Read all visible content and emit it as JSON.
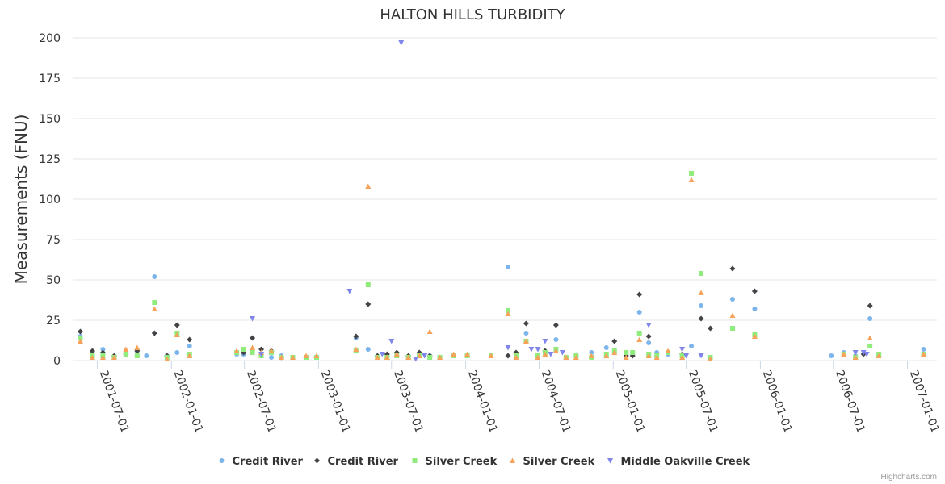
{
  "colors": {
    "credit_river_1": "#7cb5ec",
    "credit_river_2": "#434348",
    "silver_creek_1": "#90ed7d",
    "silver_creek_2": "#f7a35c",
    "middle_oakville": "#8085e9",
    "grid": "#e6e6e6",
    "axis": "#ccd6eb"
  },
  "credits": "Highcharts.com",
  "chart_data": {
    "type": "scatter",
    "title": "HALTON HILLS TURBIDITY",
    "ylabel": "Measurements (FNU)",
    "xlabel": "",
    "ylim": [
      0,
      200
    ],
    "y_ticks": [
      0,
      25,
      50,
      75,
      100,
      125,
      150,
      175,
      200
    ],
    "xlim": [
      "2001-05-01",
      "2007-03-15"
    ],
    "x_ticks": [
      "2001-07-01",
      "2002-01-01",
      "2002-07-01",
      "2003-01-01",
      "2003-07-01",
      "2004-01-01",
      "2004-07-01",
      "2005-01-01",
      "2005-07-01",
      "2006-01-01",
      "2006-07-01",
      "2007-01-01"
    ],
    "grid": "horizontal",
    "legend_position": "bottom-center",
    "series": [
      {
        "name": "Credit River",
        "marker": "circle",
        "color_key": "credit_river_1",
        "points": [
          [
            "2001-05-20",
            15
          ],
          [
            "2001-06-19",
            5
          ],
          [
            "2001-07-15",
            7
          ],
          [
            "2001-08-12",
            2
          ],
          [
            "2001-09-10",
            5
          ],
          [
            "2001-10-08",
            6
          ],
          [
            "2001-10-31",
            3
          ],
          [
            "2001-11-20",
            52
          ],
          [
            "2001-12-21",
            3
          ],
          [
            "2002-01-15",
            5
          ],
          [
            "2002-02-15",
            9
          ],
          [
            "2002-06-12",
            4
          ],
          [
            "2002-06-29",
            4
          ],
          [
            "2002-07-21",
            5
          ],
          [
            "2002-08-12",
            3
          ],
          [
            "2002-09-06",
            2
          ],
          [
            "2002-10-01",
            3
          ],
          [
            "2002-10-29",
            2
          ],
          [
            "2002-12-01",
            2
          ],
          [
            "2002-12-27",
            2
          ],
          [
            "2003-04-04",
            14
          ],
          [
            "2003-05-04",
            7
          ],
          [
            "2003-05-27",
            2
          ],
          [
            "2003-06-20",
            3
          ],
          [
            "2003-07-14",
            3
          ],
          [
            "2003-08-12",
            2
          ],
          [
            "2003-09-08",
            3
          ],
          [
            "2003-10-04",
            3
          ],
          [
            "2003-10-29",
            2
          ],
          [
            "2003-12-02",
            3
          ],
          [
            "2004-01-05",
            3
          ],
          [
            "2004-03-04",
            3
          ],
          [
            "2004-04-15",
            58
          ],
          [
            "2004-05-05",
            3
          ],
          [
            "2004-05-30",
            17
          ],
          [
            "2004-06-28",
            3
          ],
          [
            "2004-07-16",
            5
          ],
          [
            "2004-08-12",
            13
          ],
          [
            "2004-09-06",
            2
          ],
          [
            "2004-10-01",
            3
          ],
          [
            "2004-11-08",
            5
          ],
          [
            "2004-12-15",
            8
          ],
          [
            "2005-01-04",
            5
          ],
          [
            "2005-02-02",
            4
          ],
          [
            "2005-03-07",
            30
          ],
          [
            "2005-03-30",
            11
          ],
          [
            "2005-04-19",
            5
          ],
          [
            "2005-05-17",
            4
          ],
          [
            "2005-06-21",
            2
          ],
          [
            "2005-07-14",
            9
          ],
          [
            "2005-08-07",
            34
          ],
          [
            "2005-08-30",
            2
          ],
          [
            "2005-10-24",
            38
          ],
          [
            "2005-12-18",
            32
          ],
          [
            "2006-06-26",
            3
          ],
          [
            "2006-07-27",
            5
          ],
          [
            "2006-08-25",
            3
          ],
          [
            "2006-09-30",
            26
          ],
          [
            "2006-10-22",
            3
          ],
          [
            "2007-02-10",
            7
          ]
        ]
      },
      {
        "name": "Credit River",
        "marker": "diamond",
        "color_key": "credit_river_2",
        "points": [
          [
            "2001-05-20",
            18
          ],
          [
            "2001-06-19",
            6
          ],
          [
            "2001-07-15",
            5
          ],
          [
            "2001-08-12",
            3
          ],
          [
            "2001-09-10",
            4
          ],
          [
            "2001-10-08",
            6
          ],
          [
            "2001-11-20",
            17
          ],
          [
            "2001-12-21",
            3
          ],
          [
            "2002-01-15",
            22
          ],
          [
            "2002-02-15",
            13
          ],
          [
            "2002-06-29",
            5
          ],
          [
            "2002-07-21",
            14
          ],
          [
            "2002-08-12",
            7
          ],
          [
            "2002-09-06",
            6
          ],
          [
            "2002-10-01",
            2
          ],
          [
            "2003-04-04",
            15
          ],
          [
            "2003-05-04",
            35
          ],
          [
            "2003-05-27",
            3
          ],
          [
            "2003-06-20",
            4
          ],
          [
            "2003-07-14",
            5
          ],
          [
            "2003-08-12",
            3
          ],
          [
            "2003-09-08",
            5
          ],
          [
            "2003-10-04",
            3
          ],
          [
            "2004-04-15",
            3
          ],
          [
            "2004-05-05",
            5
          ],
          [
            "2004-05-30",
            23
          ],
          [
            "2004-07-16",
            6
          ],
          [
            "2004-08-12",
            22
          ],
          [
            "2005-01-04",
            12
          ],
          [
            "2005-02-02",
            3
          ],
          [
            "2005-02-18",
            3
          ],
          [
            "2005-03-07",
            41
          ],
          [
            "2005-03-30",
            15
          ],
          [
            "2005-06-21",
            4
          ],
          [
            "2005-08-07",
            26
          ],
          [
            "2005-08-30",
            20
          ],
          [
            "2005-10-24",
            57
          ],
          [
            "2005-12-18",
            43
          ],
          [
            "2006-09-14",
            4
          ],
          [
            "2006-09-30",
            34
          ]
        ]
      },
      {
        "name": "Silver Creek",
        "marker": "square",
        "color_key": "silver_creek_1",
        "points": [
          [
            "2001-05-20",
            14
          ],
          [
            "2001-06-19",
            3
          ],
          [
            "2001-07-15",
            3
          ],
          [
            "2001-08-12",
            2
          ],
          [
            "2001-09-10",
            4
          ],
          [
            "2001-10-08",
            3
          ],
          [
            "2001-11-20",
            36
          ],
          [
            "2001-12-21",
            2
          ],
          [
            "2002-01-15",
            17
          ],
          [
            "2002-02-15",
            4
          ],
          [
            "2002-06-12",
            5
          ],
          [
            "2002-06-29",
            7
          ],
          [
            "2002-07-21",
            5
          ],
          [
            "2002-08-12",
            3
          ],
          [
            "2002-09-06",
            5
          ],
          [
            "2002-10-01",
            2
          ],
          [
            "2002-10-29",
            2
          ],
          [
            "2002-12-01",
            2
          ],
          [
            "2002-12-27",
            2
          ],
          [
            "2003-04-04",
            6
          ],
          [
            "2003-05-04",
            47
          ],
          [
            "2003-05-27",
            2
          ],
          [
            "2003-06-20",
            2
          ],
          [
            "2003-07-14",
            3
          ],
          [
            "2003-08-12",
            2
          ],
          [
            "2003-09-08",
            3
          ],
          [
            "2003-10-04",
            2
          ],
          [
            "2003-10-29",
            2
          ],
          [
            "2003-12-02",
            3
          ],
          [
            "2004-01-05",
            3
          ],
          [
            "2004-03-04",
            3
          ],
          [
            "2004-04-15",
            31
          ],
          [
            "2004-05-05",
            3
          ],
          [
            "2004-05-30",
            12
          ],
          [
            "2004-06-28",
            3
          ],
          [
            "2004-07-16",
            5
          ],
          [
            "2004-08-12",
            7
          ],
          [
            "2004-09-06",
            2
          ],
          [
            "2004-10-01",
            3
          ],
          [
            "2004-11-08",
            2
          ],
          [
            "2004-12-15",
            4
          ],
          [
            "2005-01-04",
            6
          ],
          [
            "2005-02-02",
            5
          ],
          [
            "2005-02-18",
            5
          ],
          [
            "2005-03-07",
            17
          ],
          [
            "2005-03-30",
            4
          ],
          [
            "2005-04-19",
            3
          ],
          [
            "2005-05-17",
            5
          ],
          [
            "2005-06-21",
            3
          ],
          [
            "2005-07-14",
            116
          ],
          [
            "2005-08-07",
            54
          ],
          [
            "2005-08-30",
            2
          ],
          [
            "2005-10-24",
            20
          ],
          [
            "2005-12-18",
            16
          ],
          [
            "2006-07-27",
            4
          ],
          [
            "2006-08-25",
            2
          ],
          [
            "2006-09-30",
            9
          ],
          [
            "2006-10-22",
            4
          ],
          [
            "2007-02-10",
            4
          ]
        ]
      },
      {
        "name": "Silver Creek",
        "marker": "triangle",
        "color_key": "silver_creek_2",
        "points": [
          [
            "2001-05-20",
            12
          ],
          [
            "2001-06-19",
            2
          ],
          [
            "2001-07-15",
            2
          ],
          [
            "2001-08-12",
            2
          ],
          [
            "2001-09-10",
            7
          ],
          [
            "2001-10-08",
            8
          ],
          [
            "2001-11-20",
            32
          ],
          [
            "2001-12-21",
            1
          ],
          [
            "2002-01-15",
            16
          ],
          [
            "2002-02-15",
            3
          ],
          [
            "2002-06-12",
            6
          ],
          [
            "2002-07-21",
            8
          ],
          [
            "2002-08-12",
            5
          ],
          [
            "2002-09-06",
            6
          ],
          [
            "2002-10-01",
            2
          ],
          [
            "2002-10-29",
            2
          ],
          [
            "2002-12-01",
            3
          ],
          [
            "2002-12-27",
            3
          ],
          [
            "2003-04-04",
            7
          ],
          [
            "2003-05-04",
            108
          ],
          [
            "2003-05-27",
            2
          ],
          [
            "2003-06-20",
            2
          ],
          [
            "2003-07-14",
            4
          ],
          [
            "2003-08-12",
            2
          ],
          [
            "2003-09-08",
            3
          ],
          [
            "2003-10-04",
            18
          ],
          [
            "2003-10-29",
            2
          ],
          [
            "2003-12-02",
            4
          ],
          [
            "2004-01-05",
            4
          ],
          [
            "2004-03-04",
            3
          ],
          [
            "2004-04-15",
            29
          ],
          [
            "2004-05-05",
            2
          ],
          [
            "2004-05-30",
            12
          ],
          [
            "2004-06-28",
            2
          ],
          [
            "2004-07-16",
            4
          ],
          [
            "2004-08-12",
            6
          ],
          [
            "2004-09-06",
            2
          ],
          [
            "2004-10-01",
            2
          ],
          [
            "2004-11-08",
            3
          ],
          [
            "2004-12-15",
            3
          ],
          [
            "2005-01-04",
            5
          ],
          [
            "2005-02-02",
            2
          ],
          [
            "2005-03-07",
            13
          ],
          [
            "2005-03-30",
            3
          ],
          [
            "2005-04-19",
            2
          ],
          [
            "2005-05-17",
            6
          ],
          [
            "2005-06-21",
            2
          ],
          [
            "2005-07-14",
            112
          ],
          [
            "2005-08-07",
            42
          ],
          [
            "2005-08-30",
            1
          ],
          [
            "2005-10-24",
            28
          ],
          [
            "2005-12-18",
            15
          ],
          [
            "2006-07-27",
            4
          ],
          [
            "2006-08-25",
            2
          ],
          [
            "2006-09-30",
            14
          ],
          [
            "2006-10-22",
            3
          ],
          [
            "2007-02-10",
            4
          ]
        ]
      },
      {
        "name": "Middle Oakville Creek",
        "marker": "triangle-down",
        "color_key": "middle_oakville",
        "points": [
          [
            "2002-07-21",
            26
          ],
          [
            "2002-08-12",
            4
          ],
          [
            "2003-03-19",
            43
          ],
          [
            "2003-06-08",
            4
          ],
          [
            "2003-07-01",
            12
          ],
          [
            "2003-07-25",
            197
          ],
          [
            "2003-08-30",
            1
          ],
          [
            "2003-09-21",
            3
          ],
          [
            "2004-04-15",
            8
          ],
          [
            "2004-06-12",
            7
          ],
          [
            "2004-06-28",
            7
          ],
          [
            "2004-07-16",
            12
          ],
          [
            "2004-07-30",
            4
          ],
          [
            "2004-08-28",
            5
          ],
          [
            "2005-03-30",
            22
          ],
          [
            "2005-06-21",
            7
          ],
          [
            "2005-07-01",
            3
          ],
          [
            "2005-08-07",
            3
          ],
          [
            "2006-08-25",
            5
          ],
          [
            "2006-09-14",
            5
          ],
          [
            "2006-09-22",
            4
          ]
        ]
      }
    ]
  }
}
